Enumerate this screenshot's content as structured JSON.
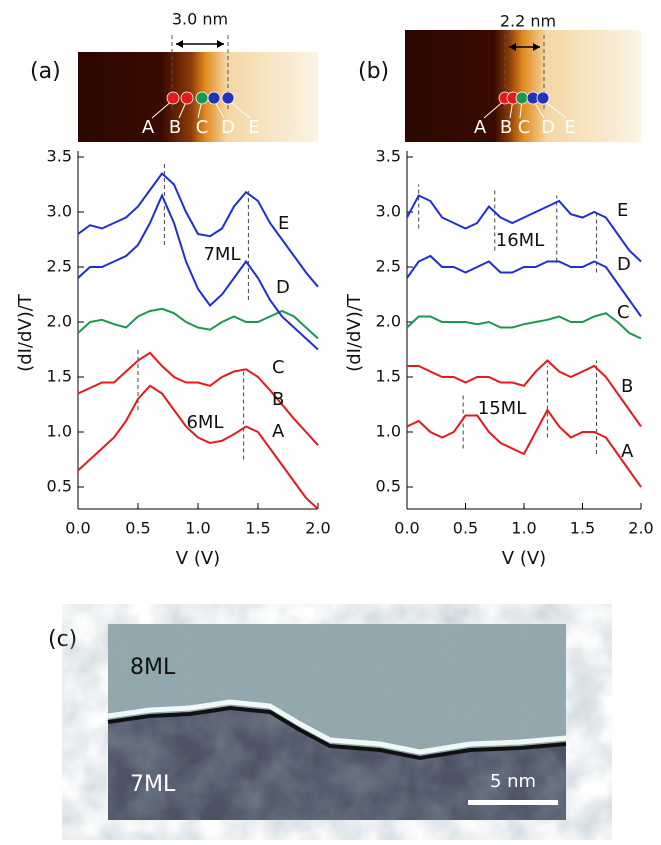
{
  "figure": {
    "panels": [
      {
        "label": "(a)",
        "scale_label": "3.0 nm",
        "point_labels": [
          "A",
          "B",
          "C",
          "D",
          "E"
        ]
      },
      {
        "label": "(b)",
        "scale_label": "2.2 nm",
        "point_labels": [
          "A",
          "B",
          "C",
          "D",
          "E"
        ]
      }
    ],
    "panel_c": {
      "label": "(c)",
      "region_labels": [
        "8ML",
        "7ML"
      ],
      "scale_bar": "5 nm"
    }
  },
  "chart_data": [
    {
      "type": "line",
      "xlabel": "V (V)",
      "ylabel": "(dI/dV)/T",
      "x": [
        0,
        0.1,
        0.2,
        0.3,
        0.4,
        0.5,
        0.6,
        0.7,
        0.8,
        0.9,
        1.0,
        1.1,
        1.2,
        1.3,
        1.4,
        1.5,
        1.6,
        1.7,
        1.8,
        1.9,
        2.0
      ],
      "series": [
        {
          "name": "A",
          "color": "#e41a1c",
          "values": [
            0.65,
            0.75,
            0.85,
            0.95,
            1.1,
            1.3,
            1.42,
            1.35,
            1.2,
            1.05,
            0.95,
            0.9,
            0.92,
            0.98,
            1.05,
            1.0,
            0.85,
            0.7,
            0.55,
            0.4,
            0.3
          ]
        },
        {
          "name": "B",
          "color": "#e41a1c",
          "values": [
            1.35,
            1.4,
            1.45,
            1.45,
            1.55,
            1.65,
            1.72,
            1.6,
            1.5,
            1.45,
            1.45,
            1.42,
            1.5,
            1.55,
            1.57,
            1.5,
            1.38,
            1.25,
            1.12,
            1.0,
            0.88
          ]
        },
        {
          "name": "C",
          "color": "#1a9850",
          "values": [
            1.9,
            2.0,
            2.02,
            1.98,
            1.95,
            2.05,
            2.1,
            2.12,
            2.08,
            2.0,
            1.95,
            1.93,
            2.0,
            2.05,
            2.0,
            2.0,
            2.05,
            2.1,
            2.05,
            1.95,
            1.85
          ]
        },
        {
          "name": "D",
          "color": "#1f2fd6",
          "values": [
            2.4,
            2.5,
            2.5,
            2.55,
            2.6,
            2.7,
            2.9,
            3.15,
            2.9,
            2.55,
            2.3,
            2.15,
            2.25,
            2.4,
            2.55,
            2.4,
            2.2,
            2.05,
            1.95,
            1.85,
            1.75
          ]
        },
        {
          "name": "E",
          "color": "#1f2fd6",
          "values": [
            2.8,
            2.88,
            2.85,
            2.9,
            2.95,
            3.05,
            3.2,
            3.35,
            3.25,
            3.0,
            2.8,
            2.78,
            2.85,
            3.05,
            3.18,
            3.1,
            2.9,
            2.75,
            2.6,
            2.45,
            2.32
          ]
        }
      ],
      "annotations": [
        "6ML",
        "7ML"
      ],
      "markers": [
        {
          "x": 0.72,
          "y": [
            2.7,
            3.45
          ]
        },
        {
          "x": 1.42,
          "y": [
            2.2,
            3.2
          ]
        },
        {
          "x": 0.5,
          "y": [
            1.2,
            1.75
          ]
        },
        {
          "x": 1.38,
          "y": [
            0.75,
            1.55
          ]
        }
      ],
      "xlim": [
        0,
        2.0
      ],
      "ylim": [
        0.3,
        3.5
      ],
      "xticks": [
        {
          "value": 0,
          "label": "0.0"
        },
        0.5,
        {
          "value": 1.0,
          "label": "1.0"
        },
        1.5,
        {
          "value": 2.0,
          "label": "2.0"
        }
      ],
      "yticks": [
        0.5,
        {
          "value": 1.0,
          "label": "1.0"
        },
        1.5,
        {
          "value": 2.0,
          "label": "2.0"
        },
        2.5,
        {
          "value": 3.0,
          "label": "3.0"
        },
        3.5
      ]
    },
    {
      "type": "line",
      "xlabel": "V (V)",
      "ylabel": "(dI/dV)/T",
      "x": [
        0,
        0.1,
        0.2,
        0.3,
        0.4,
        0.5,
        0.6,
        0.7,
        0.8,
        0.9,
        1.0,
        1.1,
        1.2,
        1.3,
        1.4,
        1.5,
        1.6,
        1.7,
        1.8,
        1.9,
        2.0
      ],
      "series": [
        {
          "name": "A",
          "color": "#e41a1c",
          "values": [
            1.05,
            1.1,
            1.0,
            0.95,
            1.0,
            1.15,
            1.15,
            1.0,
            0.9,
            0.85,
            0.8,
            1.0,
            1.2,
            1.05,
            0.95,
            1.0,
            1.0,
            0.95,
            0.8,
            0.65,
            0.5
          ]
        },
        {
          "name": "B",
          "color": "#e41a1c",
          "values": [
            1.6,
            1.6,
            1.55,
            1.5,
            1.5,
            1.45,
            1.5,
            1.5,
            1.45,
            1.45,
            1.42,
            1.55,
            1.65,
            1.55,
            1.5,
            1.55,
            1.6,
            1.5,
            1.35,
            1.2,
            1.05
          ]
        },
        {
          "name": "C",
          "color": "#1a9850",
          "values": [
            1.95,
            2.05,
            2.05,
            2.0,
            2.0,
            2.0,
            1.98,
            2.0,
            1.95,
            1.95,
            1.98,
            2.0,
            2.02,
            2.05,
            2.0,
            2.0,
            2.05,
            2.08,
            2.0,
            1.9,
            1.85
          ]
        },
        {
          "name": "D",
          "color": "#1f2fd6",
          "values": [
            2.4,
            2.55,
            2.6,
            2.5,
            2.5,
            2.45,
            2.5,
            2.55,
            2.45,
            2.45,
            2.5,
            2.5,
            2.55,
            2.55,
            2.5,
            2.5,
            2.55,
            2.5,
            2.35,
            2.2,
            2.05
          ]
        },
        {
          "name": "E",
          "color": "#1f2fd6",
          "values": [
            2.95,
            3.15,
            3.1,
            2.95,
            2.9,
            2.85,
            2.9,
            3.05,
            2.95,
            2.9,
            2.95,
            3.0,
            3.05,
            3.1,
            2.98,
            2.95,
            3.0,
            2.95,
            2.8,
            2.65,
            2.55
          ]
        }
      ],
      "annotations": [
        "15ML",
        "16ML"
      ],
      "markers": [
        {
          "x": 0.1,
          "y": [
            2.85,
            3.25
          ]
        },
        {
          "x": 0.75,
          "y": [
            2.65,
            3.2
          ]
        },
        {
          "x": 1.28,
          "y": [
            2.55,
            3.15
          ]
        },
        {
          "x": 1.62,
          "y": [
            2.45,
            3.0
          ]
        },
        {
          "x": 0.48,
          "y": [
            0.85,
            1.35
          ]
        },
        {
          "x": 1.2,
          "y": [
            0.95,
            1.6
          ]
        },
        {
          "x": 1.62,
          "y": [
            0.8,
            1.65
          ]
        }
      ],
      "xlim": [
        0,
        2.0
      ],
      "ylim": [
        0.3,
        3.5
      ],
      "xticks": [
        {
          "value": 0,
          "label": "0.0"
        },
        0.5,
        {
          "value": 1.0,
          "label": "1.0"
        },
        1.5,
        {
          "value": 2.0,
          "label": "2.0"
        }
      ],
      "yticks": [
        0.5,
        {
          "value": 1.0,
          "label": "1.0"
        },
        1.5,
        {
          "value": 2.0,
          "label": "2.0"
        },
        2.5,
        {
          "value": 3.0,
          "label": "3.0"
        },
        3.5
      ]
    }
  ]
}
